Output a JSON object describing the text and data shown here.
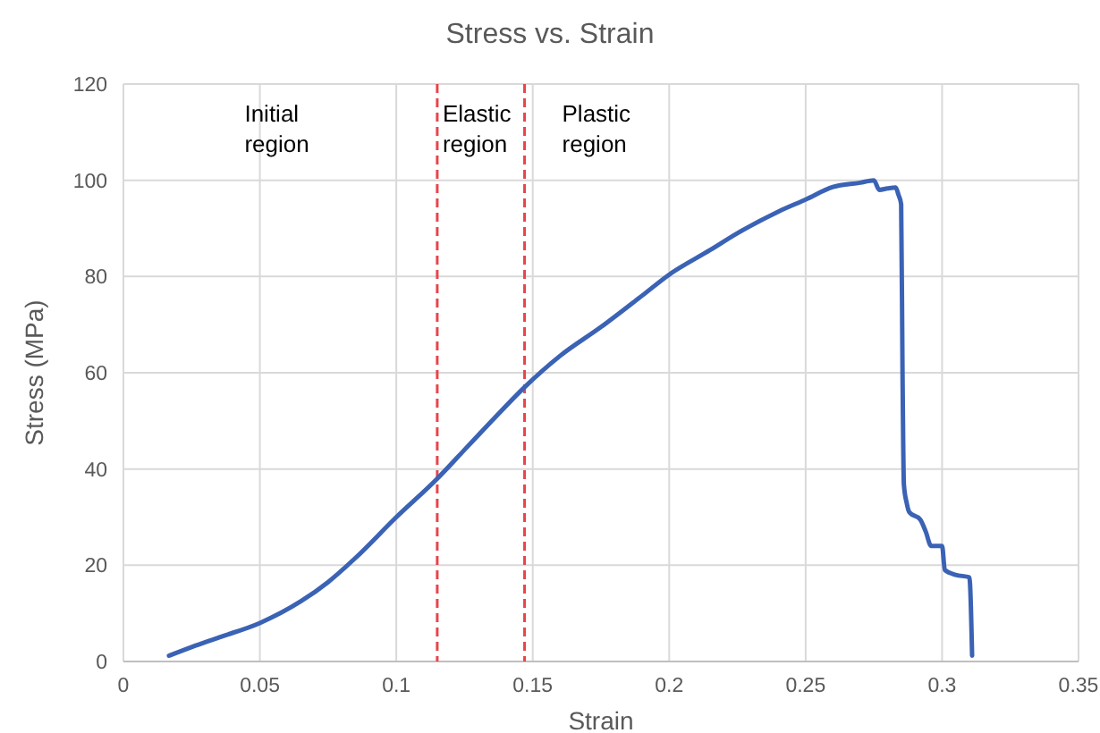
{
  "chart_data": {
    "type": "line",
    "title": "Stress vs. Strain",
    "xlabel": "Strain",
    "ylabel": "Stress (MPa)",
    "series": [
      {
        "color": "#3a62b5",
        "x": [
          0.0167,
          0.025,
          0.035,
          0.05,
          0.065,
          0.075,
          0.085,
          0.1,
          0.115,
          0.125,
          0.135,
          0.147,
          0.16,
          0.175,
          0.19,
          0.2,
          0.215,
          0.225,
          0.24,
          0.25,
          0.26,
          0.27,
          0.275,
          0.277,
          0.28,
          0.283,
          0.284,
          0.285,
          0.2855,
          0.286,
          0.287,
          0.288,
          0.292,
          0.294,
          0.296,
          0.3,
          0.301,
          0.305,
          0.31,
          0.311
        ],
        "values": [
          1.2,
          3,
          5,
          8,
          12.5,
          16.5,
          21.5,
          30,
          38,
          44,
          50,
          57,
          63.5,
          69.5,
          76,
          80.4,
          85.5,
          89,
          93.5,
          96,
          98.6,
          99.5,
          100,
          98,
          98.3,
          98.5,
          97,
          95,
          60,
          36.8,
          33,
          31,
          29.5,
          27,
          24,
          24,
          19,
          18,
          17.5,
          1.2
        ]
      }
    ],
    "xlim": [
      0,
      0.35
    ],
    "xticks": [
      0,
      0.05,
      0.1,
      0.15,
      0.2,
      0.25,
      0.3,
      0.35
    ],
    "ylim": [
      0,
      120
    ],
    "yticks": [
      0,
      20,
      40,
      60,
      80,
      100,
      120
    ],
    "grid": true,
    "marker": "none",
    "line_style": "solid",
    "ref_lines": [
      {
        "axis": "x",
        "value": 0.115,
        "color": "#e8444a",
        "line_style": "dashed"
      },
      {
        "axis": "x",
        "value": 0.147,
        "color": "#e8444a",
        "line_style": "dashed"
      }
    ],
    "annotations": [
      "Initial region",
      "Elastic region",
      "Plastic region"
    ]
  }
}
